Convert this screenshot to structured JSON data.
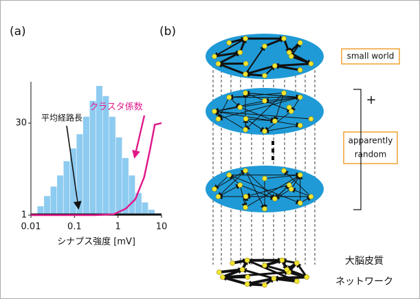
{
  "figure": {
    "panel_a": "(a)",
    "panel_b": "(b)"
  },
  "chart_data": {
    "type": "histogram",
    "xlabel": "シナプス強度 [mV]",
    "xscale": "log",
    "bins": [
      0.0141,
      0.02,
      0.0282,
      0.0398,
      0.0562,
      0.0794,
      0.112,
      0.158,
      0.224,
      0.316,
      0.447,
      0.631,
      0.891,
      1.26,
      1.78,
      2.51,
      3.55,
      5.01,
      7.08,
      10
    ],
    "values": [
      3.8,
      7,
      10,
      13.5,
      18,
      22,
      26.5,
      32,
      37,
      41.7,
      38.5,
      32,
      25.5,
      19,
      13.5,
      8,
      5,
      2.7,
      1.6
    ],
    "color": "#8ecbf0",
    "xlim": [
      0.01,
      10
    ],
    "xticks": [
      0.01,
      0.1,
      1,
      10
    ],
    "ylim": [
      1,
      43
    ],
    "yticks": [
      1,
      30
    ],
    "series": [
      {
        "name": "平均経路長",
        "color": "#111111",
        "x": [
          0.01,
          0.1,
          1,
          10
        ],
        "values": [
          1.2,
          1.2,
          1.2,
          1.2
        ]
      },
      {
        "name": "クラスタ係数",
        "color": "#e0198a",
        "x": [
          0.01,
          0.3,
          0.8,
          1.5,
          2.5,
          4,
          5.5,
          7,
          10
        ],
        "values": [
          1,
          1,
          1.3,
          3,
          6,
          13,
          22,
          29.5,
          30
        ]
      }
    ]
  },
  "diagram": {
    "small_world": "small world",
    "plus": "+",
    "random": [
      "apparently",
      "random"
    ],
    "cortex": [
      "大脳皮質",
      "ネットワーク"
    ]
  }
}
